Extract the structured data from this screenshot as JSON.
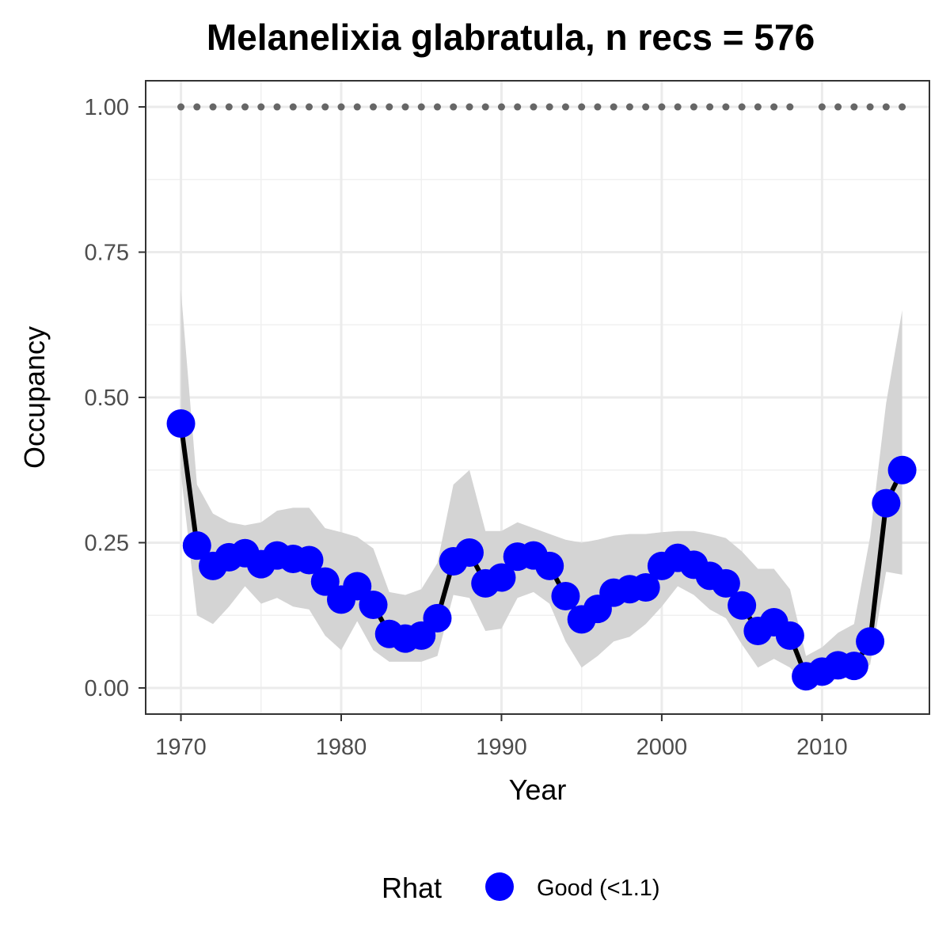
{
  "chart_data": {
    "type": "line",
    "title": "Melanelixia glabratula, n recs = 576",
    "xlabel": "Year",
    "ylabel": "Occupancy",
    "xlim": [
      1967.8,
      2016.7
    ],
    "ylim": [
      -0.045,
      1.045
    ],
    "x_ticks": [
      1970,
      1980,
      1990,
      2000,
      2010
    ],
    "x_tick_labels": [
      "1970",
      "1980",
      "1990",
      "2000",
      "2010"
    ],
    "y_ticks": [
      0,
      0.25,
      0.5,
      0.75,
      1
    ],
    "y_tick_labels": [
      "0.00",
      "0.25",
      "0.50",
      "0.75",
      "1.00"
    ],
    "grid": true,
    "legend": {
      "title": "Rhat",
      "position": "bottom",
      "entries": [
        {
          "label": "Good (<1.1)",
          "color": "#0000ff"
        }
      ]
    },
    "colors": {
      "points": "#0000ff",
      "line": "#000000",
      "ribbon": "#d4d4d4",
      "records": "#666666"
    },
    "series": [
      {
        "x": [
          1970,
          1971,
          1972,
          1973,
          1974,
          1975,
          1976,
          1977,
          1978,
          1979,
          1980,
          1981,
          1982,
          1983,
          1984,
          1985,
          1986,
          1987,
          1988,
          1989,
          1990,
          1991,
          1992,
          1993,
          1994,
          1995,
          1996,
          1997,
          1998,
          1999,
          2000,
          2001,
          2002,
          2003,
          2004,
          2005,
          2006,
          2007,
          2008,
          2009,
          2010,
          2011,
          2012,
          2013,
          2014,
          2015
        ],
        "y": [
          0.455,
          0.245,
          0.21,
          0.225,
          0.232,
          0.213,
          0.228,
          0.222,
          0.22,
          0.183,
          0.152,
          0.175,
          0.143,
          0.093,
          0.085,
          0.09,
          0.12,
          0.218,
          0.233,
          0.18,
          0.19,
          0.226,
          0.228,
          0.21,
          0.158,
          0.118,
          0.136,
          0.164,
          0.17,
          0.173,
          0.21,
          0.224,
          0.212,
          0.193,
          0.18,
          0.142,
          0.098,
          0.113,
          0.09,
          0.02,
          0.028,
          0.039,
          0.038,
          0.08,
          0.318,
          0.375
        ],
        "lower": [
          0.37,
          0.125,
          0.11,
          0.14,
          0.175,
          0.145,
          0.155,
          0.14,
          0.135,
          0.09,
          0.065,
          0.115,
          0.065,
          0.045,
          0.045,
          0.045,
          0.055,
          0.16,
          0.155,
          0.098,
          0.102,
          0.155,
          0.165,
          0.145,
          0.08,
          0.035,
          0.055,
          0.08,
          0.088,
          0.11,
          0.14,
          0.175,
          0.16,
          0.135,
          0.12,
          0.075,
          0.035,
          0.05,
          0.035,
          0.005,
          0.01,
          0.015,
          0.02,
          0.04,
          0.2,
          0.195
        ],
        "upper": [
          0.685,
          0.35,
          0.3,
          0.285,
          0.28,
          0.285,
          0.305,
          0.31,
          0.31,
          0.275,
          0.268,
          0.26,
          0.24,
          0.165,
          0.16,
          0.17,
          0.215,
          0.35,
          0.375,
          0.27,
          0.27,
          0.285,
          0.275,
          0.265,
          0.255,
          0.25,
          0.255,
          0.262,
          0.265,
          0.265,
          0.268,
          0.27,
          0.27,
          0.265,
          0.258,
          0.235,
          0.205,
          0.205,
          0.17,
          0.055,
          0.07,
          0.095,
          0.11,
          0.26,
          0.49,
          0.65
        ]
      }
    ],
    "records_years": [
      1970,
      1971,
      1972,
      1973,
      1974,
      1975,
      1976,
      1977,
      1978,
      1979,
      1980,
      1981,
      1982,
      1983,
      1984,
      1985,
      1986,
      1987,
      1988,
      1989,
      1990,
      1991,
      1992,
      1993,
      1994,
      1995,
      1996,
      1997,
      1998,
      1999,
      2000,
      2001,
      2002,
      2003,
      2004,
      2005,
      2006,
      2007,
      2008,
      2010,
      2011,
      2012,
      2013,
      2014,
      2015
    ],
    "records_y": 1
  }
}
